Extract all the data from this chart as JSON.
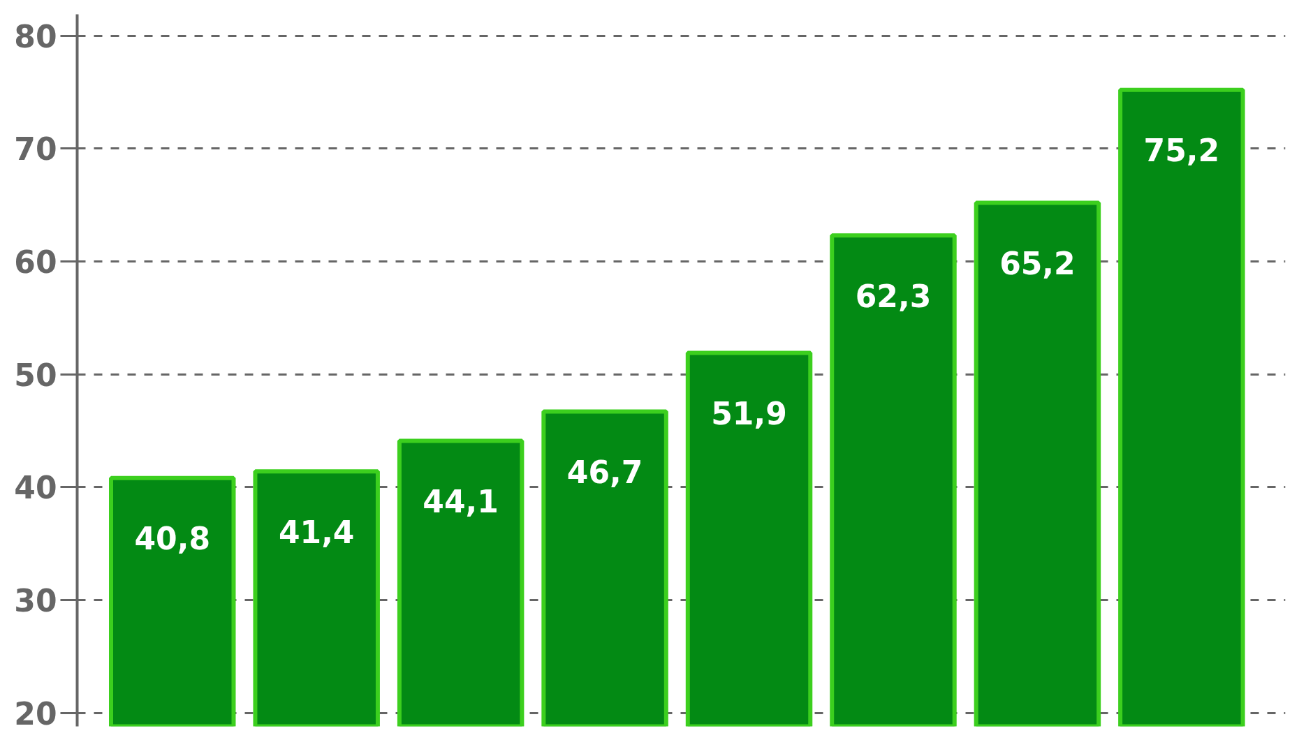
{
  "chart_data": {
    "type": "bar",
    "categories": [
      null,
      null,
      null,
      null,
      null,
      null,
      null,
      null
    ],
    "values": [
      40.8,
      41.4,
      44.1,
      46.7,
      51.9,
      62.3,
      65.2,
      75.2
    ],
    "value_labels": [
      "40,8",
      "41,4",
      "44,1",
      "46,7",
      "51,9",
      "62,3",
      "65,2",
      "75,2"
    ],
    "color": "#038a14",
    "ylim": [
      18.8,
      81.9
    ],
    "yticks": [
      20,
      30,
      40,
      50,
      60,
      70,
      80
    ],
    "grid": "y",
    "tick_labels": "y"
  }
}
